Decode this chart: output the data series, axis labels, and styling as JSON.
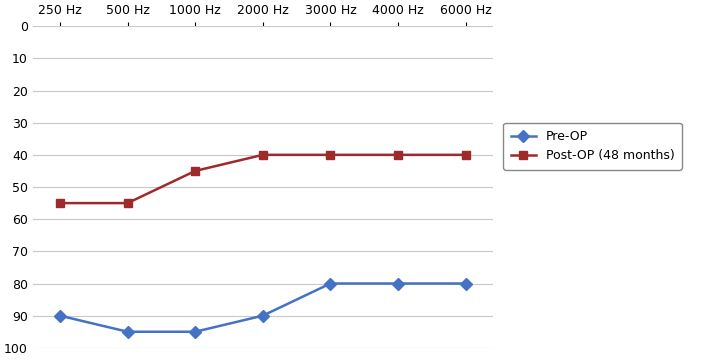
{
  "x_positions": [
    0,
    1,
    2,
    3,
    4,
    5,
    6
  ],
  "x_labels": [
    "250 Hz",
    "500 Hz",
    "1000 Hz",
    "2000 Hz",
    "3000 Hz",
    "4000 Hz",
    "6000 Hz"
  ],
  "pre_op": [
    90,
    95,
    95,
    90,
    80,
    80,
    80
  ],
  "post_op": [
    55,
    55,
    45,
    40,
    40,
    40,
    40
  ],
  "pre_op_color": "#4472c4",
  "post_op_color": "#9e2a2b",
  "background_color": "#ffffff",
  "ylim_min": 0,
  "ylim_max": 100,
  "yticks": [
    0,
    10,
    20,
    30,
    40,
    50,
    60,
    70,
    80,
    90,
    100
  ],
  "legend_pre": "Pre-OP",
  "legend_post": "Post-OP (48 months)",
  "marker_pre": "D",
  "marker_post": "s",
  "linewidth": 1.8,
  "markersize": 6,
  "grid_color": "#c8c8c8",
  "tick_fontsize": 9,
  "legend_fontsize": 9
}
